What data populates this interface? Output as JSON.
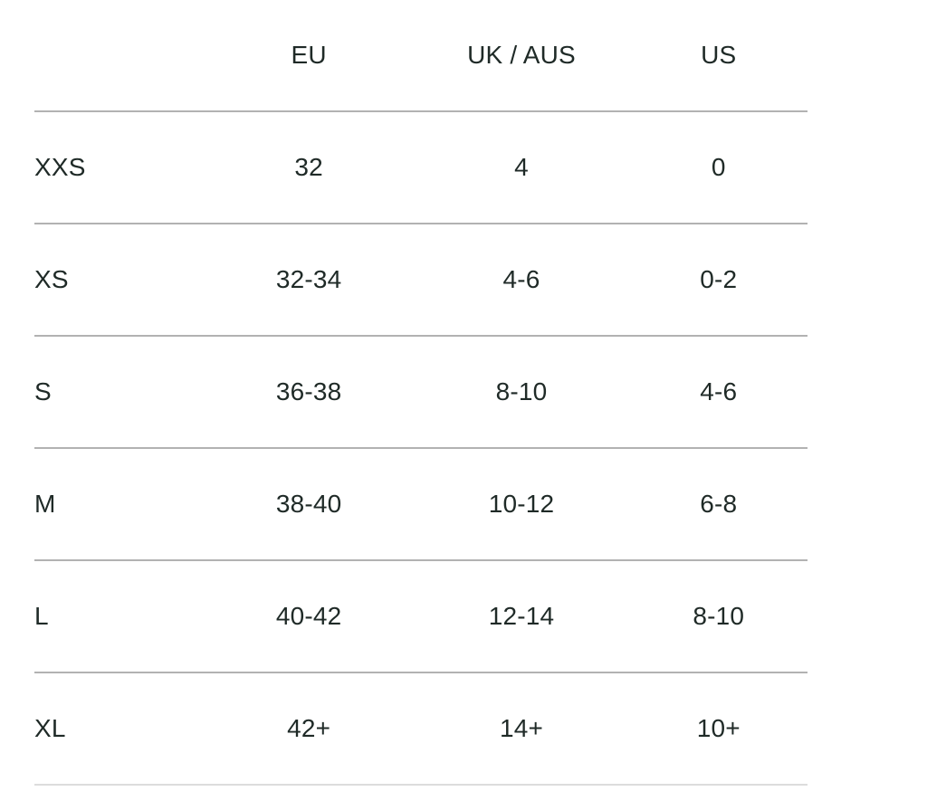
{
  "size_chart": {
    "columns": [
      {
        "key": "eu",
        "label": "EU"
      },
      {
        "key": "uk_aus",
        "label": "UK / AUS"
      },
      {
        "key": "us",
        "label": "US"
      }
    ],
    "rows": [
      {
        "label": "XXS",
        "eu": "32",
        "uk_aus": "4",
        "us": "0"
      },
      {
        "label": "XS",
        "eu": "32-34",
        "uk_aus": "4-6",
        "us": "0-2"
      },
      {
        "label": "S",
        "eu": "36-38",
        "uk_aus": "8-10",
        "us": "4-6"
      },
      {
        "label": "M",
        "eu": "38-40",
        "uk_aus": "10-12",
        "us": "6-8"
      },
      {
        "label": "L",
        "eu": "40-42",
        "uk_aus": "12-14",
        "us": "8-10"
      },
      {
        "label": "XL",
        "eu": "42+",
        "uk_aus": "14+",
        "us": "10+"
      }
    ]
  },
  "colors": {
    "text": "#1f2a27",
    "row_divider": "#b2b2b2",
    "bottom_divider": "#dcdcdc",
    "background": "#ffffff"
  }
}
